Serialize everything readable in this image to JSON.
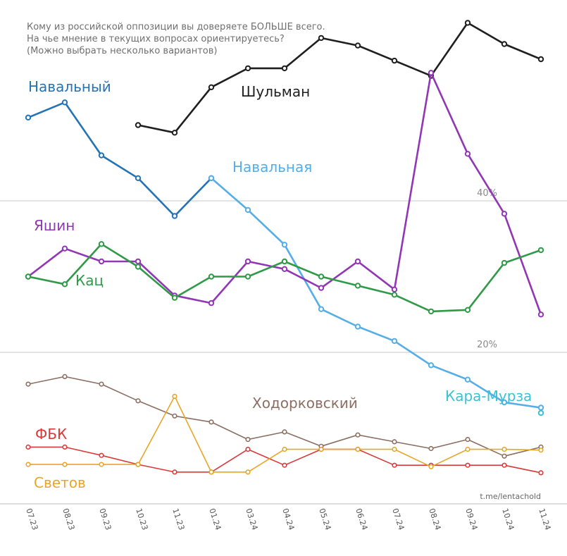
{
  "chart_data": {
    "type": "line",
    "title_lines": [
      "Кому из российской оппозиции вы доверяете БОЛЬШЕ всего.",
      "На чье мнение в текущих вопросах ориентируетесь?",
      "(Можно выбрать несколько вариантов)"
    ],
    "source": "t.me/lentachold",
    "categories": [
      "07.23",
      "08.23",
      "09.23",
      "10.23",
      "11.23",
      "01.24",
      "03.24",
      "04.24",
      "05.24",
      "06.24",
      "07.24",
      "08.24",
      "09.24",
      "10.24",
      "11.24"
    ],
    "gridlines": [
      {
        "value": 20,
        "label": "20%"
      },
      {
        "value": 40,
        "label": "40%"
      }
    ],
    "ylim": [
      0,
      62.5
    ],
    "grid": true,
    "series": [
      {
        "name": "Шульман",
        "color": "#1f1f1f",
        "values": [
          null,
          null,
          null,
          50,
          49,
          55,
          57.5,
          57.5,
          61.5,
          60.5,
          58.5,
          56.5,
          63.5,
          60.7,
          58.7
        ]
      },
      {
        "name": "Навальный",
        "color": "#2473b5",
        "values": [
          51,
          53,
          46,
          43,
          38,
          43,
          null,
          null,
          null,
          null,
          null,
          null,
          null,
          null,
          null
        ]
      },
      {
        "name": "Навальная",
        "color": "#55aee8",
        "values": [
          null,
          null,
          null,
          null,
          null,
          43,
          38.8,
          34.2,
          25.7,
          23.4,
          21.5,
          18.3,
          16.4,
          13.4,
          12.7
        ]
      },
      {
        "name": "Яшин",
        "color": "#9136b5",
        "values": [
          30,
          33.7,
          32,
          32,
          27.5,
          26.5,
          32,
          31,
          28.5,
          32,
          28.3,
          56.9,
          46.2,
          38.3,
          25
        ]
      },
      {
        "name": "Кац",
        "color": "#2f9a47",
        "values": [
          30,
          29,
          34.3,
          31.3,
          27.2,
          30,
          30,
          32,
          30,
          28.8,
          27.6,
          25.4,
          25.6,
          31.8,
          33.5
        ]
      },
      {
        "name": "Кара-Мурза",
        "color": "#3bc1d6",
        "values": [
          null,
          null,
          null,
          null,
          null,
          null,
          null,
          null,
          null,
          null,
          null,
          null,
          null,
          null,
          12
        ]
      },
      {
        "name": "Ходорковский",
        "color": "#8d6e63",
        "values": [
          15.8,
          16.8,
          15.8,
          13.6,
          11.6,
          10.8,
          8.5,
          9.5,
          7.6,
          9.1,
          8.2,
          7.3,
          8.5,
          6.3,
          7.5
        ]
      },
      {
        "name": "ФБК",
        "color": "#d93a3a",
        "values": [
          7.5,
          7.5,
          6.4,
          5.2,
          4.2,
          4.2,
          7.2,
          5.1,
          7.2,
          7.2,
          5.1,
          5.1,
          5.1,
          5.1,
          4.1
        ]
      },
      {
        "name": "Светов",
        "color": "#e8a628",
        "values": [
          5.2,
          5.2,
          5.2,
          5.2,
          14.2,
          4.2,
          4.2,
          7.2,
          7.2,
          7.2,
          7.2,
          4.9,
          7.2,
          7.2,
          7.1
        ]
      }
    ]
  },
  "labels": {
    "Шульман": "Шульман",
    "Навальный": "Навальный",
    "Навальная": "Навальная",
    "Яшин": "Яшин",
    "Кац": "Кац",
    "Кара-Мурза": "Кара-Мурза",
    "Ходорковский": "Ходорковский",
    "ФБК": "ФБК",
    "Светов": "Светов"
  }
}
